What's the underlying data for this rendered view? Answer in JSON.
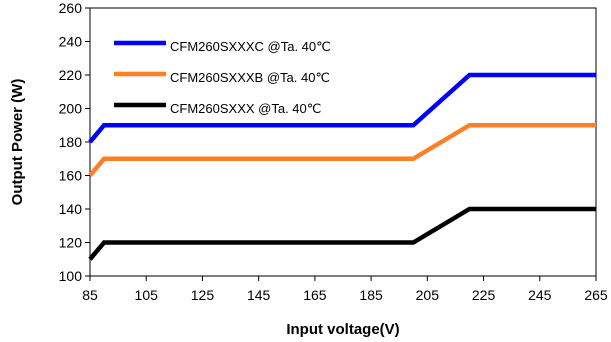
{
  "chart_data": {
    "type": "line",
    "title": "",
    "xlabel": "Input voltage(V)",
    "ylabel": "Output Power  (W)",
    "xlim": [
      85,
      265
    ],
    "ylim": [
      100,
      260
    ],
    "xticks": [
      "85",
      "105",
      "125",
      "145",
      "165",
      "185",
      "205",
      "225",
      "245",
      "265"
    ],
    "yticks": [
      "100",
      "120",
      "140",
      "160",
      "180",
      "200",
      "220",
      "240",
      "260"
    ],
    "grid": false,
    "legend_position": "top-left",
    "series": [
      {
        "name": "CFM260SXXXC @Ta. 40℃",
        "color": "#0000ff",
        "x": [
          85,
          90,
          200,
          220,
          265
        ],
        "y": [
          180,
          190,
          190,
          220,
          220
        ]
      },
      {
        "name": "CFM260SXXXB @Ta. 40℃",
        "color": "#ff7f27",
        "x": [
          85,
          90,
          200,
          220,
          265
        ],
        "y": [
          160,
          170,
          170,
          190,
          190
        ]
      },
      {
        "name": "CFM260SXXX @Ta. 40℃",
        "color": "#000000",
        "x": [
          85,
          90,
          200,
          220,
          265
        ],
        "y": [
          110,
          120,
          120,
          140,
          140
        ]
      }
    ]
  }
}
